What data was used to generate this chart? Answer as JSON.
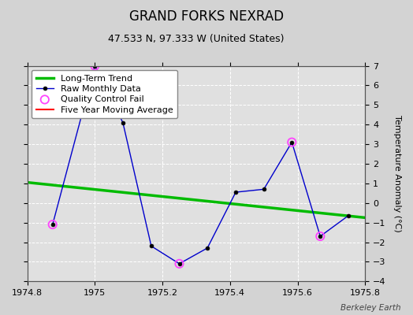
{
  "title": "GRAND FORKS NEXRAD",
  "subtitle": "47.533 N, 97.333 W (United States)",
  "ylabel": "Temperature Anomaly (°C)",
  "watermark": "Berkeley Earth",
  "xlim": [
    1974.8,
    1975.8
  ],
  "ylim": [
    -4,
    7
  ],
  "yticks": [
    -4,
    -3,
    -2,
    -1,
    0,
    1,
    2,
    3,
    4,
    5,
    6,
    7
  ],
  "xticks": [
    1974.8,
    1975.0,
    1975.2,
    1975.4,
    1975.6,
    1975.8
  ],
  "raw_x": [
    1974.875,
    1975.0,
    1975.083,
    1975.167,
    1975.25,
    1975.333,
    1975.417,
    1975.5,
    1975.583,
    1975.667,
    1975.75
  ],
  "raw_y": [
    -1.1,
    7.0,
    4.1,
    -2.2,
    -3.1,
    -2.3,
    0.55,
    0.7,
    3.1,
    -1.7,
    -0.65
  ],
  "qc_fail_x": [
    1974.875,
    1975.0,
    1975.25,
    1975.583,
    1975.667
  ],
  "qc_fail_y": [
    -1.1,
    7.0,
    -3.1,
    3.1,
    -1.7
  ],
  "trend_x": [
    1974.8,
    1975.8
  ],
  "trend_y": [
    1.05,
    -0.75
  ],
  "bg_color": "#d3d3d3",
  "plot_bg_color": "#e0e0e0",
  "raw_line_color": "#0000cc",
  "raw_marker_color": "#000000",
  "qc_marker_color": "#ff44ff",
  "trend_line_color": "#00bb00",
  "five_year_color": "#ff0000",
  "grid_color": "#ffffff",
  "title_fontsize": 12,
  "subtitle_fontsize": 9,
  "legend_fontsize": 8,
  "tick_fontsize": 8,
  "ylabel_fontsize": 8
}
